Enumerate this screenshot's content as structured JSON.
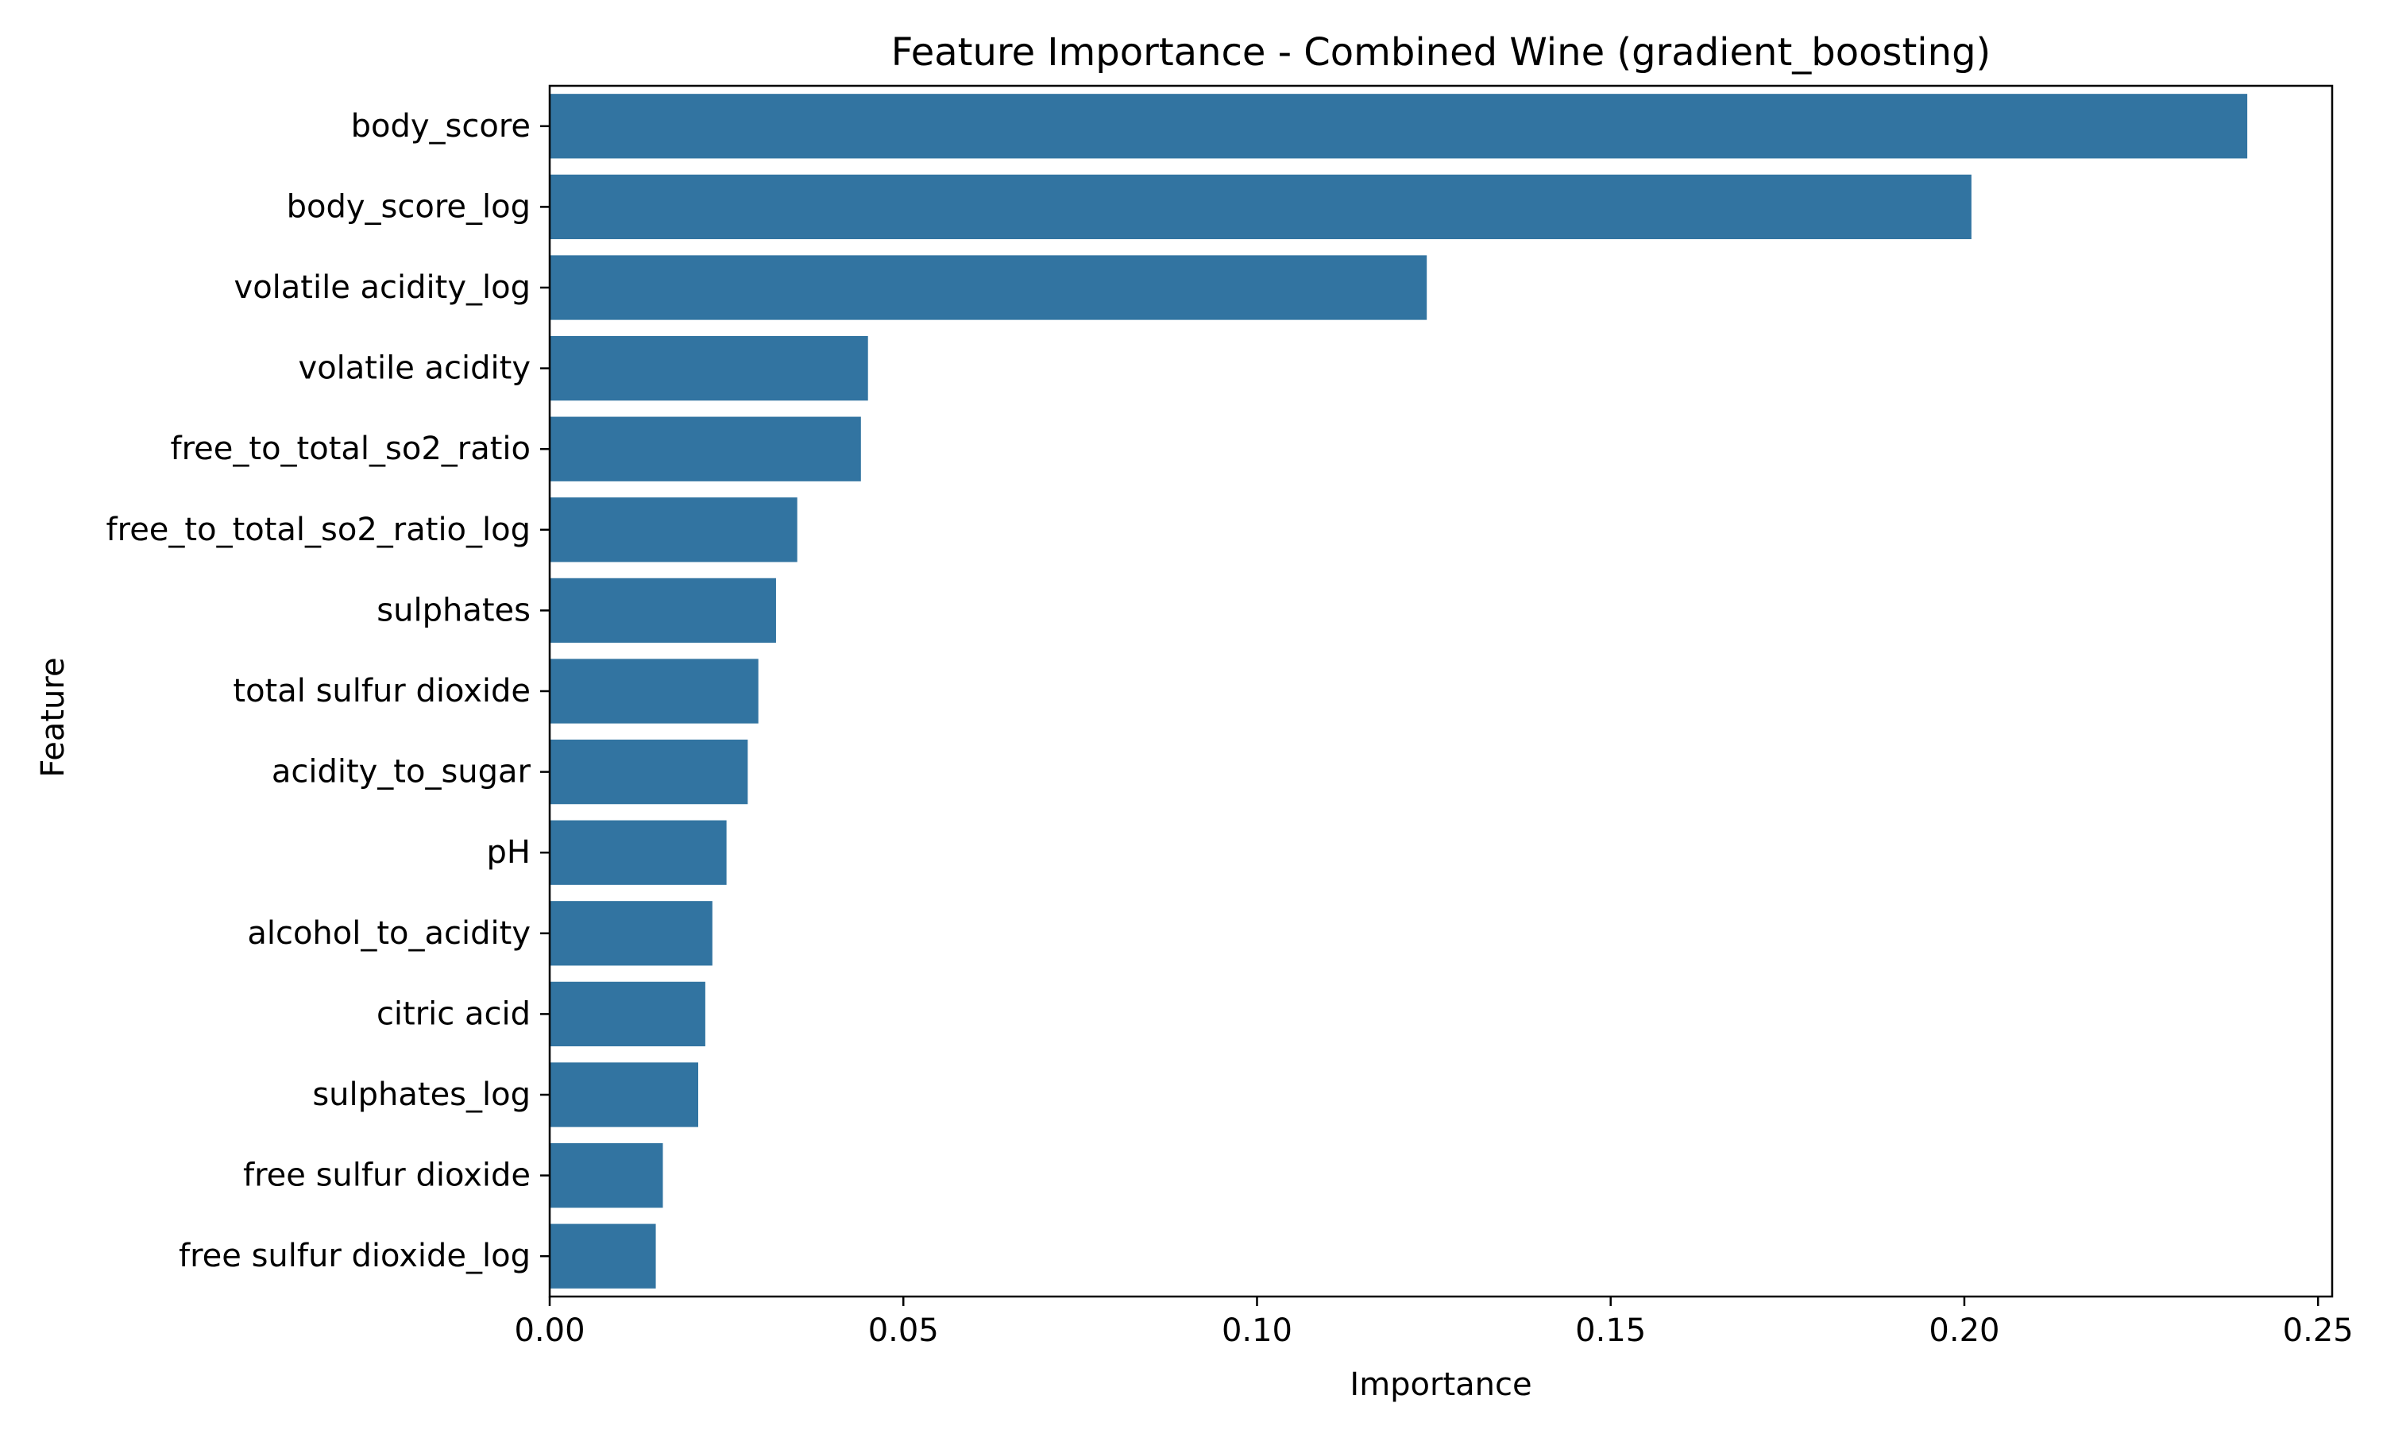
{
  "chart_data": {
    "type": "bar",
    "orientation": "horizontal",
    "title": "Feature Importance - Combined Wine (gradient_boosting)",
    "xlabel": "Importance",
    "ylabel": "Feature",
    "categories": [
      "body_score",
      "body_score_log",
      "volatile acidity_log",
      "volatile acidity",
      "free_to_total_so2_ratio",
      "free_to_total_so2_ratio_log",
      "sulphates",
      "total sulfur dioxide",
      "acidity_to_sugar",
      "pH",
      "alcohol_to_acidity",
      "citric acid",
      "sulphates_log",
      "free sulfur dioxide",
      "free sulfur dioxide_log"
    ],
    "values": [
      0.24,
      0.201,
      0.124,
      0.045,
      0.044,
      0.035,
      0.032,
      0.0295,
      0.028,
      0.025,
      0.023,
      0.022,
      0.021,
      0.016,
      0.015
    ],
    "xlim": [
      0.0,
      0.252
    ],
    "xticks": [
      0.0,
      0.05,
      0.1,
      0.15,
      0.2,
      0.25
    ],
    "xtick_labels": [
      "0.00",
      "0.05",
      "0.10",
      "0.15",
      "0.20",
      "0.25"
    ],
    "grid": false,
    "legend": "none",
    "bar_color": "#3274a1"
  }
}
